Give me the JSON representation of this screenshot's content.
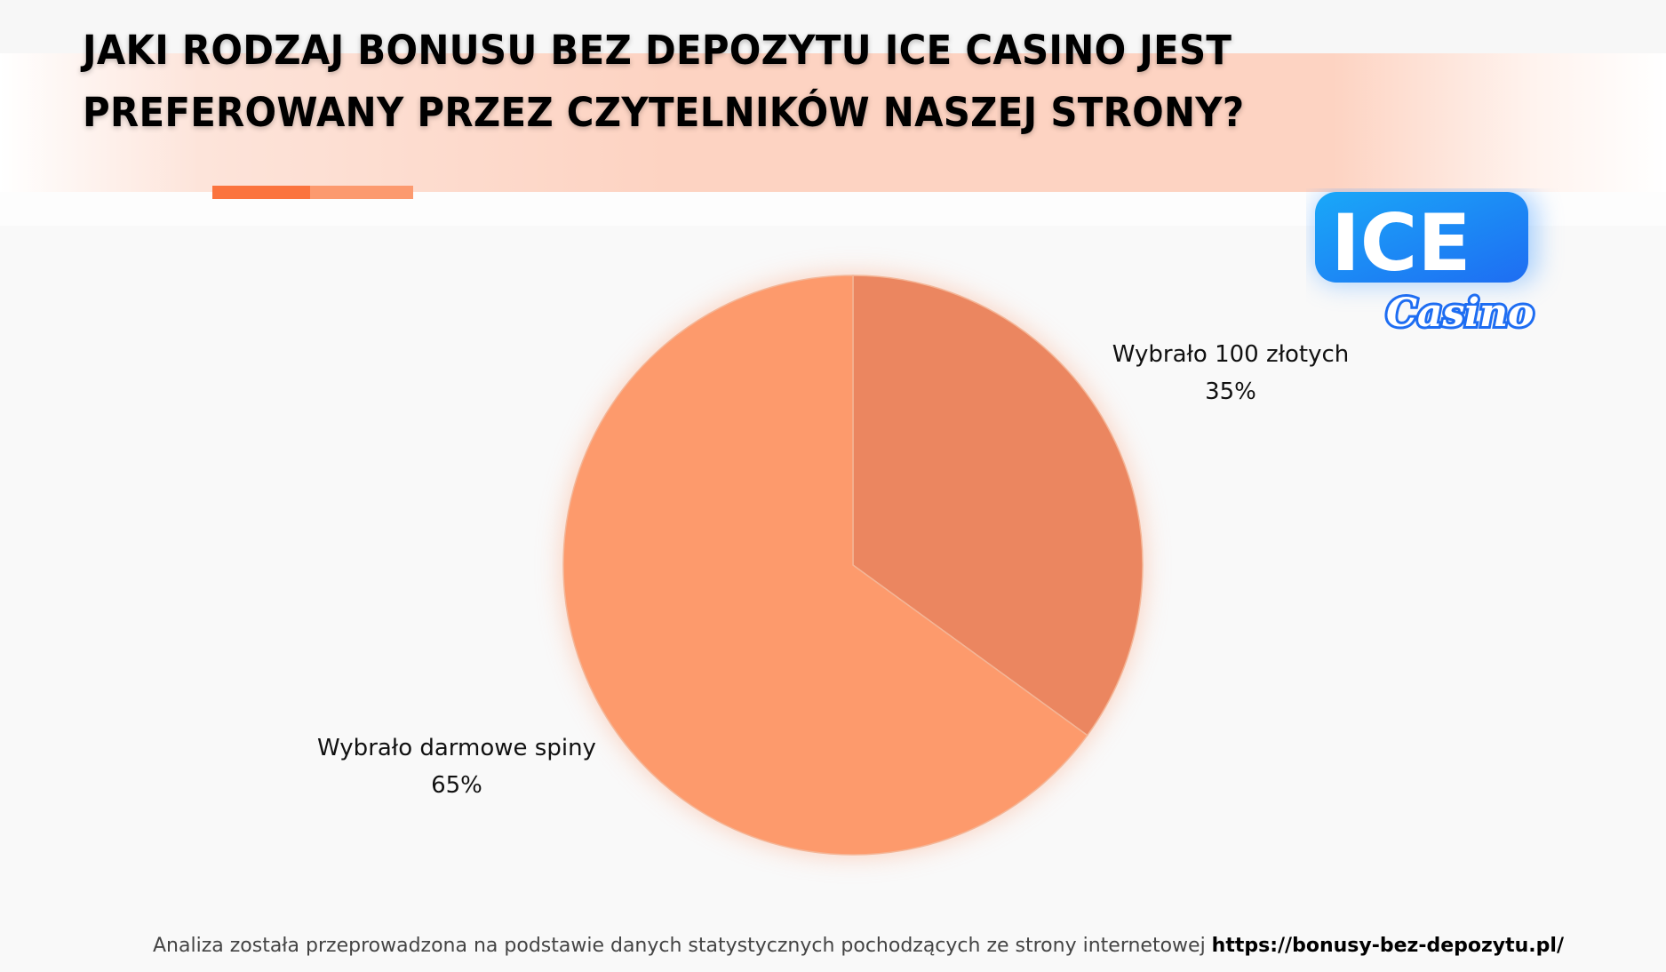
{
  "chart_data": {
    "type": "pie",
    "title": "JAKI RODZAJ BONUSU BEZ DEPOZYTU ICE CASINO JEST PREFEROWANY PRZEZ CZYTELNIKÓW NASZEJ STRONY?",
    "title_lines": [
      "JAKI RODZAJ BONUSU BEZ DEPOZYTU ICE CASINO JEST",
      "PREFEROWANY PRZEZ CZYTELNIKÓW NASZEJ STRONY?"
    ],
    "slices": [
      {
        "label": "Wybrało 100 złotych",
        "value": 35,
        "value_label": "35%",
        "color": "#EB8660"
      },
      {
        "label": "Wybrało darmowe spiny",
        "value": 65,
        "value_label": "65%",
        "color": "#FD9A6C"
      }
    ],
    "start_angle": "top",
    "direction": "clockwise"
  },
  "footer": {
    "text": "Analiza została przeprowadzona na podstawie danych statystycznych pochodzących ze strony internetowej",
    "link": "https://bonusy-bez-depozytu.pl/"
  },
  "logo": {
    "text_main": "ICE",
    "text_script": "Casino",
    "color": "#1f7cf5"
  },
  "accent_colors": [
    "#FB743E",
    "#FC9A6F"
  ]
}
